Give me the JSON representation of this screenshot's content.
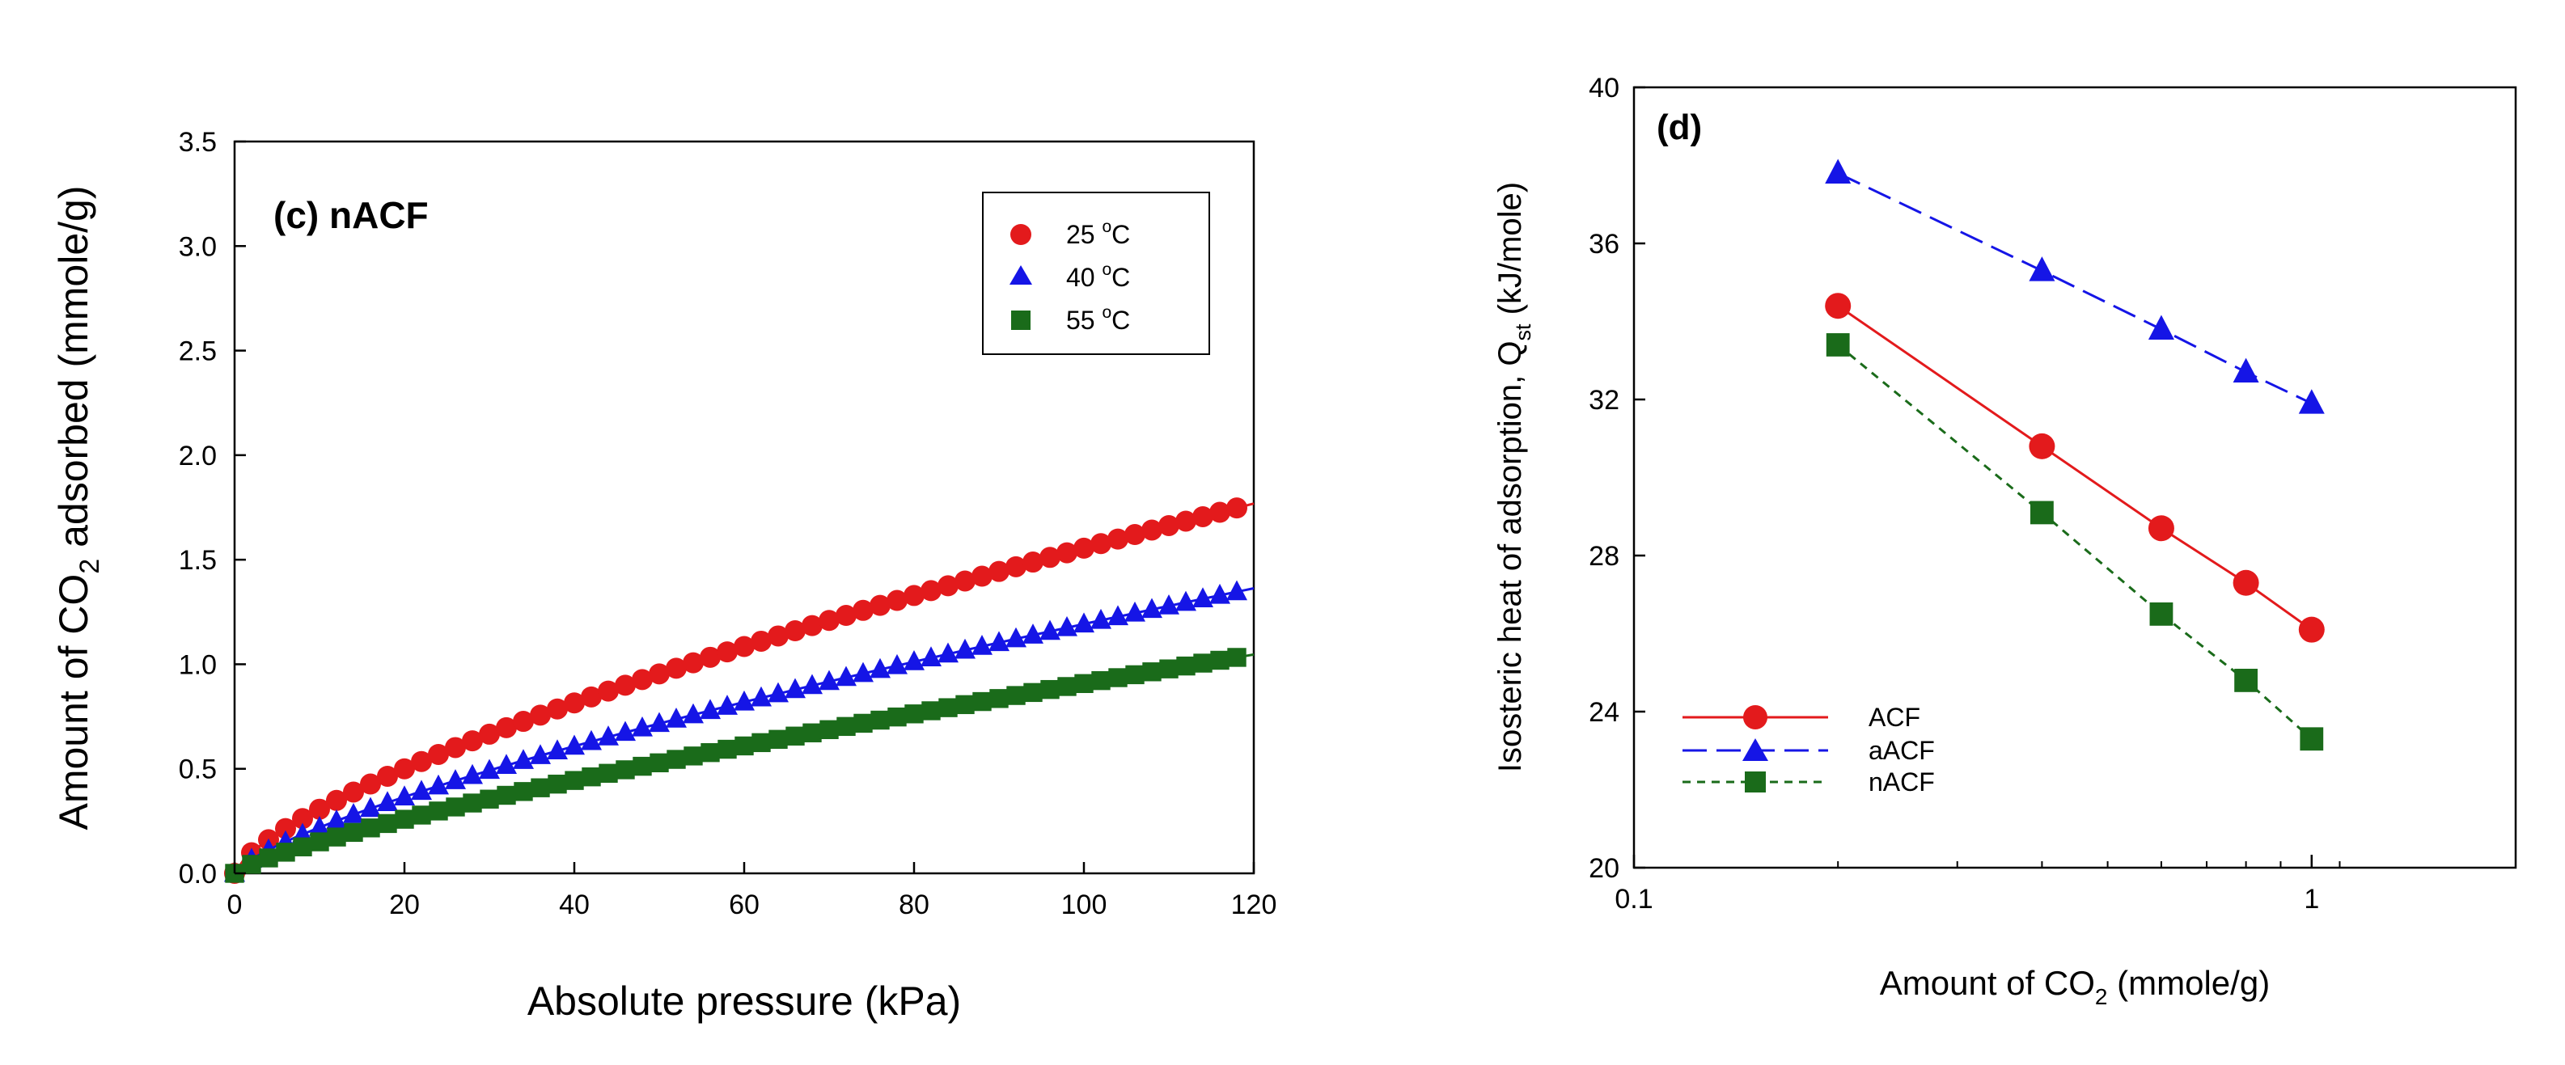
{
  "chart_data": [
    {
      "type": "scatter",
      "title": "(c) nACF",
      "xlabel": "Absolute pressure (kPa)",
      "ylabel": "Amount of CO2 adsorbed (mmole/g)",
      "ylabel_parts": {
        "pre": "Amount of CO",
        "sub": "2",
        "post": " adsorbed (mmole/g)"
      },
      "xlim": [
        0,
        120
      ],
      "ylim": [
        0,
        3.5
      ],
      "xticks": [
        "0",
        "20",
        "40",
        "60",
        "80",
        "100",
        "120"
      ],
      "yticks": [
        "0.0",
        "0.5",
        "1.0",
        "1.5",
        "2.0",
        "2.5",
        "3.0",
        "3.5"
      ],
      "legend_position": "top-right",
      "series": [
        {
          "name": "25 oC",
          "label_num": "25",
          "label_sup": "o",
          "label_unit": "C",
          "color": "#e31a1c",
          "marker": "circle",
          "fit": {
            "a": 0.0605,
            "b": 0.705
          }
        },
        {
          "name": "40 oC",
          "label_num": "40",
          "label_sup": "o",
          "label_unit": "C",
          "color": "#1515e6",
          "marker": "triangle",
          "fit": {
            "a": 0.0404,
            "b": 0.735
          }
        },
        {
          "name": "55 oC",
          "label_num": "55",
          "label_sup": "o",
          "label_unit": "C",
          "color": "#1a6b1a",
          "marker": "square",
          "fit": {
            "a": 0.025,
            "b": 0.78
          }
        }
      ],
      "x_points": [
        0,
        2,
        4,
        6,
        8,
        10,
        12,
        14,
        16,
        18,
        20,
        22,
        24,
        26,
        28,
        30,
        32,
        34,
        36,
        38,
        40,
        42,
        44,
        46,
        48,
        50,
        52,
        54,
        56,
        58,
        60,
        62,
        64,
        66,
        68,
        70,
        72,
        74,
        76,
        78,
        80,
        82,
        84,
        86,
        88,
        90,
        92,
        94,
        96,
        98,
        100,
        102,
        104,
        106,
        108,
        110,
        112,
        114,
        116,
        118
      ]
    },
    {
      "type": "line",
      "title": "(d)",
      "xlabel": "Amount of CO2 (mmole/g)",
      "xlabel_parts": {
        "pre": "Amount of CO",
        "sub": "2",
        "post": " (mmole/g)"
      },
      "ylabel": "Isosteric heat of adsorption, Qst (kJ/mole)",
      "ylabel_parts": {
        "pre": "Isosteric heat of adsorption, Q",
        "sub": "st",
        "post": " (kJ/mole)"
      },
      "xscale": "log",
      "xlim": [
        0.1,
        2
      ],
      "ylim": [
        20,
        40
      ],
      "xticks": [
        {
          "v": 0.1,
          "label": "0.1"
        },
        {
          "v": 1,
          "label": "1"
        }
      ],
      "yticks": [
        "20",
        "24",
        "28",
        "32",
        "36",
        "40"
      ],
      "legend_position": "bottom-left",
      "series": [
        {
          "name": "ACF",
          "color": "#e31a1c",
          "marker": "circle",
          "dash": "solid",
          "x": [
            0.2,
            0.4,
            0.6,
            0.8,
            1.0
          ],
          "y": [
            34.4,
            30.8,
            28.7,
            27.3,
            26.1
          ]
        },
        {
          "name": "aACF",
          "color": "#1515e6",
          "marker": "triangle",
          "dash": "long",
          "x": [
            0.2,
            0.4,
            0.6,
            0.8,
            1.0
          ],
          "y": [
            37.8,
            35.3,
            33.8,
            32.7,
            31.9
          ]
        },
        {
          "name": "nACF",
          "color": "#1a6b1a",
          "marker": "square",
          "dash": "short",
          "x": [
            0.2,
            0.4,
            0.6,
            0.8,
            1.0
          ],
          "y": [
            33.4,
            29.1,
            26.5,
            24.8,
            23.3
          ]
        }
      ]
    }
  ]
}
